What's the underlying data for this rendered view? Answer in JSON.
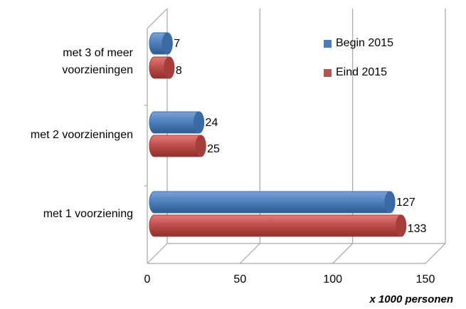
{
  "chart_data": {
    "type": "bar",
    "orientation": "horizontal",
    "style": "3d-cylinder",
    "categories": [
      "met 3 of meer voorzieningen",
      "met 2 voorzieningen",
      "met 1 voorziening"
    ],
    "category_lines": [
      [
        "met 3 of meer",
        "voorzieningen"
      ],
      [
        "met 2 voorzieningen"
      ],
      [
        "met 1 voorziening"
      ]
    ],
    "series": [
      {
        "name": "Begin 2015",
        "values": [
          7,
          24,
          127
        ],
        "color": "#4a7ebb"
      },
      {
        "name": "Eind 2015",
        "values": [
          8,
          25,
          133
        ],
        "color": "#c0504d"
      }
    ],
    "xlabel": "x 1000 personen",
    "xlim": [
      0,
      150
    ],
    "xticks": [
      "0",
      "50",
      "100",
      "150"
    ],
    "grid": true,
    "legend_position": "top-right"
  }
}
